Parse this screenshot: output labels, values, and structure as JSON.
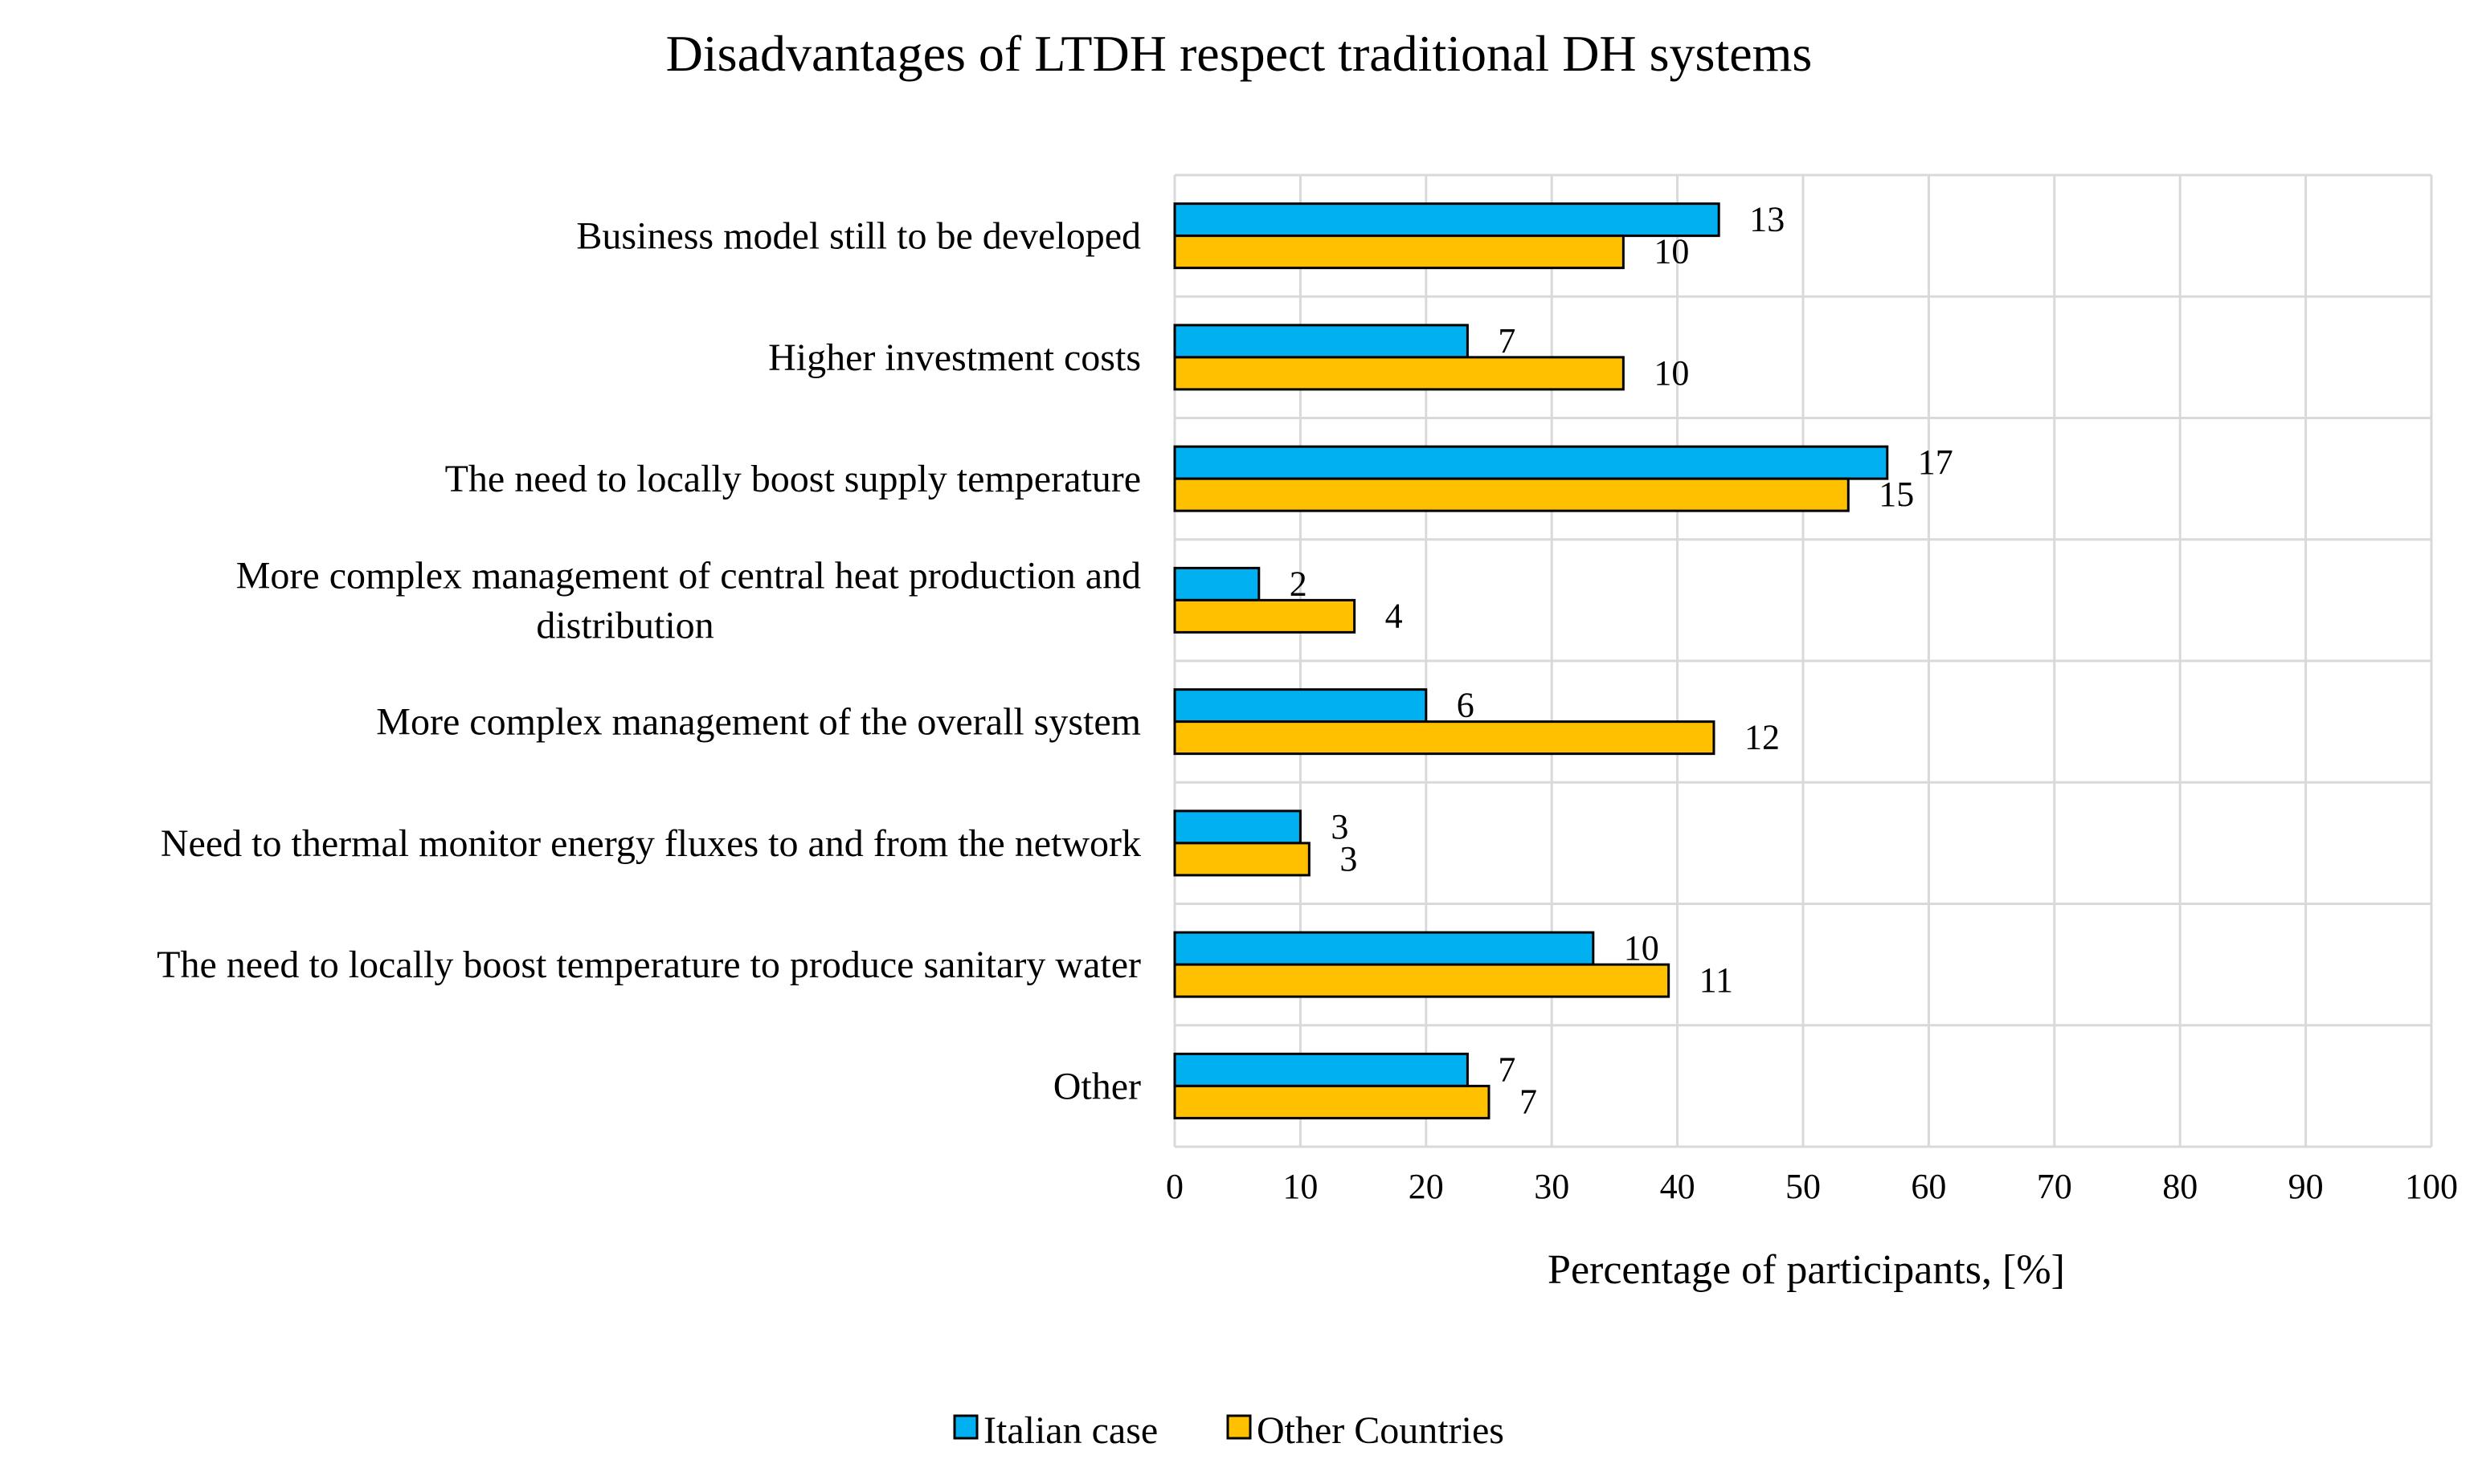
{
  "chart_data": {
    "type": "bar",
    "orientation": "horizontal",
    "title": "Disadvantages of LTDH respect traditional DH systems",
    "xlabel": "Percentage of participants, [%]",
    "ylabel": "",
    "xlim": [
      0,
      100
    ],
    "xticks": [
      0,
      10,
      20,
      30,
      40,
      50,
      60,
      70,
      80,
      90,
      100
    ],
    "grid": true,
    "legend_position": "bottom",
    "categories": [
      [
        "Business model still to be developed"
      ],
      [
        "Higher investment costs"
      ],
      [
        "The need to locally boost supply temperature"
      ],
      [
        "More complex management of central heat production and",
        "distribution"
      ],
      [
        "More complex management of the overall system"
      ],
      [
        "Need to thermal monitor energy fluxes to and from the network"
      ],
      [
        "The need to locally boost temperature to produce sanitary water"
      ],
      [
        "Other"
      ]
    ],
    "series": [
      {
        "name": "Italian case",
        "color": "#00B0F0",
        "values": [
          43.3,
          23.3,
          56.7,
          6.7,
          20.0,
          10.0,
          33.3,
          23.3
        ],
        "labels": [
          "13",
          "7",
          "17",
          "2",
          "6",
          "3",
          "10",
          "7"
        ]
      },
      {
        "name": "Other Countries",
        "color": "#FFC000",
        "values": [
          35.7,
          35.7,
          53.6,
          14.3,
          42.9,
          10.7,
          39.3,
          25.0
        ],
        "labels": [
          "10",
          "10",
          "15",
          "4",
          "12",
          "3",
          "11",
          "7"
        ]
      }
    ]
  }
}
